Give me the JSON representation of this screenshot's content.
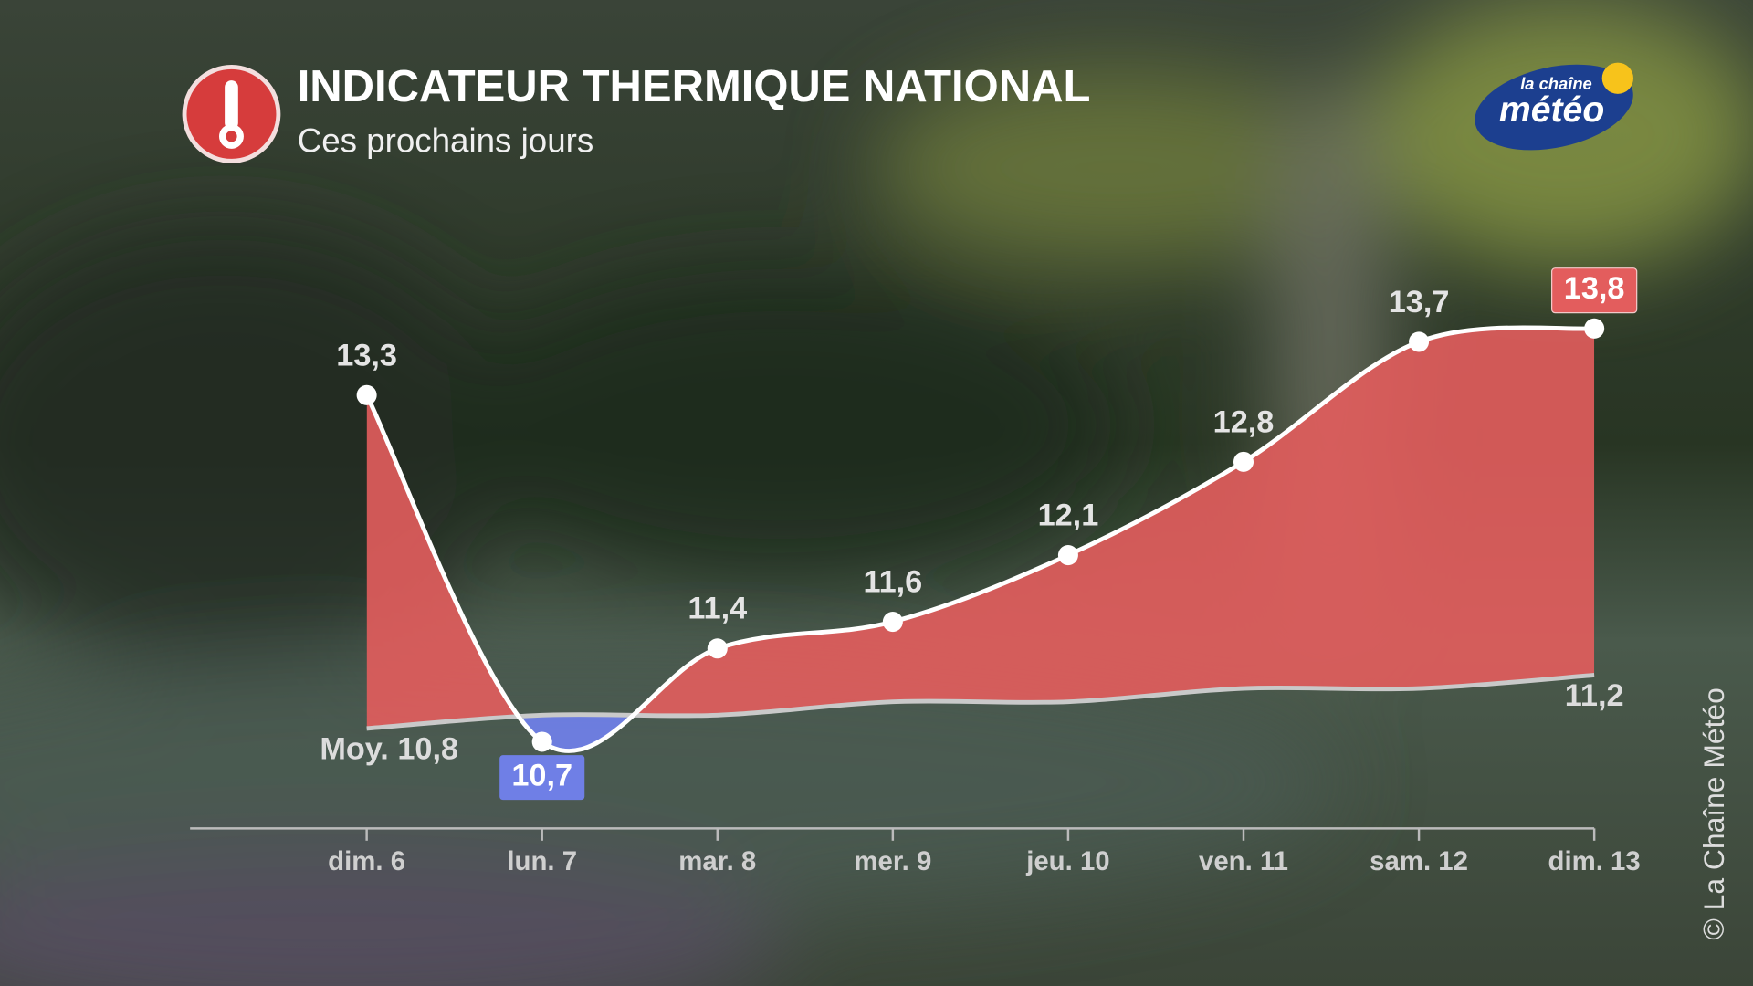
{
  "chart_data": {
    "type": "line",
    "title": "INDICATEUR THERMIQUE NATIONAL",
    "subtitle": "Ces prochains jours",
    "categories": [
      "dim. 6",
      "lun. 7",
      "mar. 8",
      "mer. 9",
      "jeu. 10",
      "ven. 11",
      "sam. 12",
      "dim. 13"
    ],
    "series": [
      {
        "name": "Indicateur",
        "color": "#ffffff",
        "fill": "#e35d5d",
        "below_fill": "#6f7fe6",
        "values": [
          13.3,
          10.7,
          11.4,
          11.6,
          12.1,
          12.8,
          13.7,
          13.8
        ],
        "value_labels": [
          "13,3",
          "10,7",
          "11,4",
          "11,6",
          "12,1",
          "12,8",
          "13,7",
          "13,8"
        ]
      },
      {
        "name": "Moy.",
        "color": "#c9c9c9",
        "values": [
          10.8,
          10.9,
          10.9,
          11.0,
          11.0,
          11.1,
          11.1,
          11.2
        ],
        "value_labels": [
          "Moy. 10,8",
          null,
          null,
          null,
          null,
          null,
          null,
          "11,2"
        ]
      }
    ],
    "ylim": [
      10,
      14
    ]
  },
  "logo": {
    "line1": "la chaîne",
    "line2": "météo"
  },
  "credit": "© La Chaîne Météo"
}
